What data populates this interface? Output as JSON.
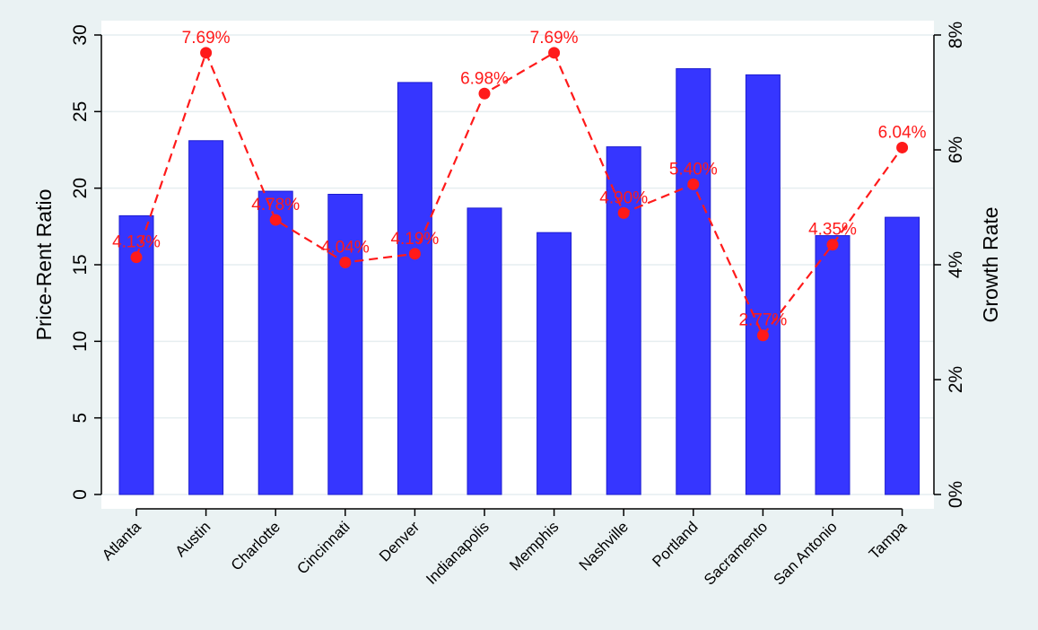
{
  "chart_data": {
    "type": "bar",
    "categories": [
      "Atlanta",
      "Austin",
      "Charlotte",
      "Cincinnati",
      "Denver",
      "Indianapolis",
      "Memphis",
      "Nashville",
      "Portland",
      "Sacramento",
      "San Antonio",
      "Tampa"
    ],
    "ylabel": "Price-Rent Ratio",
    "y2label": "Growth Rate",
    "ylim": [
      0,
      30
    ],
    "y2lim": [
      0,
      8
    ],
    "yticks": [
      "0",
      "5",
      "10",
      "15",
      "20",
      "25",
      "30"
    ],
    "y2ticks": [
      "0%",
      "2%",
      "4%",
      "6%",
      "8%"
    ],
    "grid": true,
    "series": [
      {
        "type": "bar",
        "axis": "left",
        "color": "#3636ff",
        "values": [
          18.2,
          23.1,
          19.8,
          19.6,
          26.9,
          18.7,
          17.1,
          22.7,
          27.8,
          27.4,
          16.9,
          18.1
        ]
      },
      {
        "type": "line",
        "axis": "right",
        "color": "#ff1a1a",
        "line_style": "dashed",
        "values": [
          4.13,
          7.69,
          4.78,
          4.04,
          4.19,
          6.98,
          7.69,
          4.9,
          5.4,
          2.77,
          4.35,
          6.04
        ],
        "labels": [
          "4.13%",
          "7.69%",
          "4.78%",
          "4.04%",
          "4.19%",
          "6.98%",
          "7.69%",
          "4.90%",
          "5.40%",
          "2.77%",
          "4.35%",
          "6.04%"
        ]
      }
    ]
  }
}
